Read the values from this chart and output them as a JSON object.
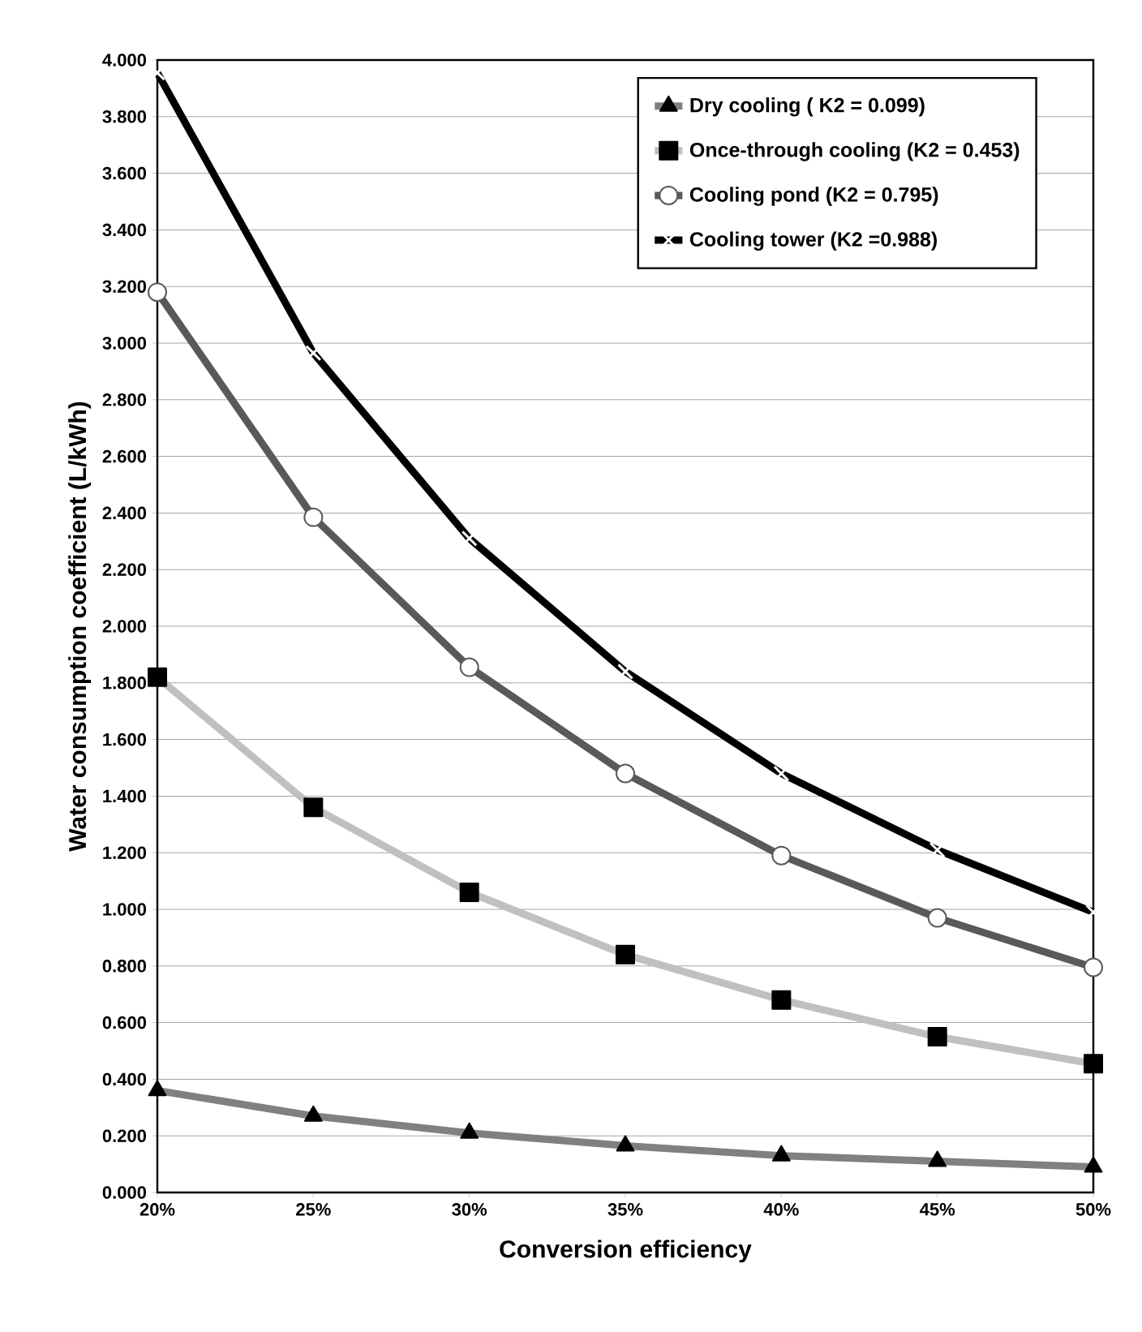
{
  "chart_data": {
    "type": "line",
    "xlabel": "Conversion efficiency",
    "ylabel": "Water consumption coefficient (L/kWh)",
    "x": [
      20,
      25,
      30,
      35,
      40,
      45,
      50
    ],
    "xlim": [
      20,
      50
    ],
    "xticks": [
      {
        "value": 20,
        "label": "20%"
      },
      {
        "value": 25,
        "label": "25%"
      },
      {
        "value": 30,
        "label": "30%"
      },
      {
        "value": 35,
        "label": "35%"
      },
      {
        "value": 40,
        "label": "40%"
      },
      {
        "value": 45,
        "label": "45%"
      },
      {
        "value": 50,
        "label": "50%"
      }
    ],
    "ylim": [
      0,
      4
    ],
    "yticks": [
      {
        "value": 0,
        "label": "0.000"
      },
      {
        "value": 0.2,
        "label": "0.200"
      },
      {
        "value": 0.4,
        "label": "0.400"
      },
      {
        "value": 0.6,
        "label": "0.600"
      },
      {
        "value": 0.8,
        "label": "0.800"
      },
      {
        "value": 1,
        "label": "1.000"
      },
      {
        "value": 1.2,
        "label": "1.200"
      },
      {
        "value": 1.4,
        "label": "1.400"
      },
      {
        "value": 1.6,
        "label": "1.600"
      },
      {
        "value": 1.8,
        "label": "1.800"
      },
      {
        "value": 2,
        "label": "2.000"
      },
      {
        "value": 2.2,
        "label": "2.200"
      },
      {
        "value": 2.4,
        "label": "2.400"
      },
      {
        "value": 2.6,
        "label": "2.600"
      },
      {
        "value": 2.8,
        "label": "2.800"
      },
      {
        "value": 3,
        "label": "3.000"
      },
      {
        "value": 3.2,
        "label": "3.200"
      },
      {
        "value": 3.4,
        "label": "3.400"
      },
      {
        "value": 3.6,
        "label": "3.600"
      },
      {
        "value": 3.8,
        "label": "3.800"
      },
      {
        "value": 4,
        "label": "4.000"
      }
    ],
    "grid": "y",
    "legend": "top right",
    "series": [
      {
        "name": "Dry cooling ( K2 = 0.099)",
        "color": "#808080",
        "marker": "triangle",
        "values": [
          0.36,
          0.27,
          0.21,
          0.165,
          0.13,
          0.11,
          0.09
        ]
      },
      {
        "name": "Once-through cooling (K2 = 0.453)",
        "color": "#c0c0c0",
        "marker": "square",
        "values": [
          1.82,
          1.36,
          1.06,
          0.84,
          0.68,
          0.55,
          0.455
        ]
      },
      {
        "name": "Cooling pond (K2 = 0.795)",
        "color": "#595959",
        "marker": "circle",
        "values": [
          3.18,
          2.385,
          1.855,
          1.48,
          1.19,
          0.97,
          0.795
        ]
      },
      {
        "name": "Cooling tower (K2 =0.988)",
        "color": "#000000",
        "marker": "cross",
        "values": [
          3.955,
          2.965,
          2.31,
          1.84,
          1.48,
          1.21,
          0.99
        ]
      }
    ]
  }
}
